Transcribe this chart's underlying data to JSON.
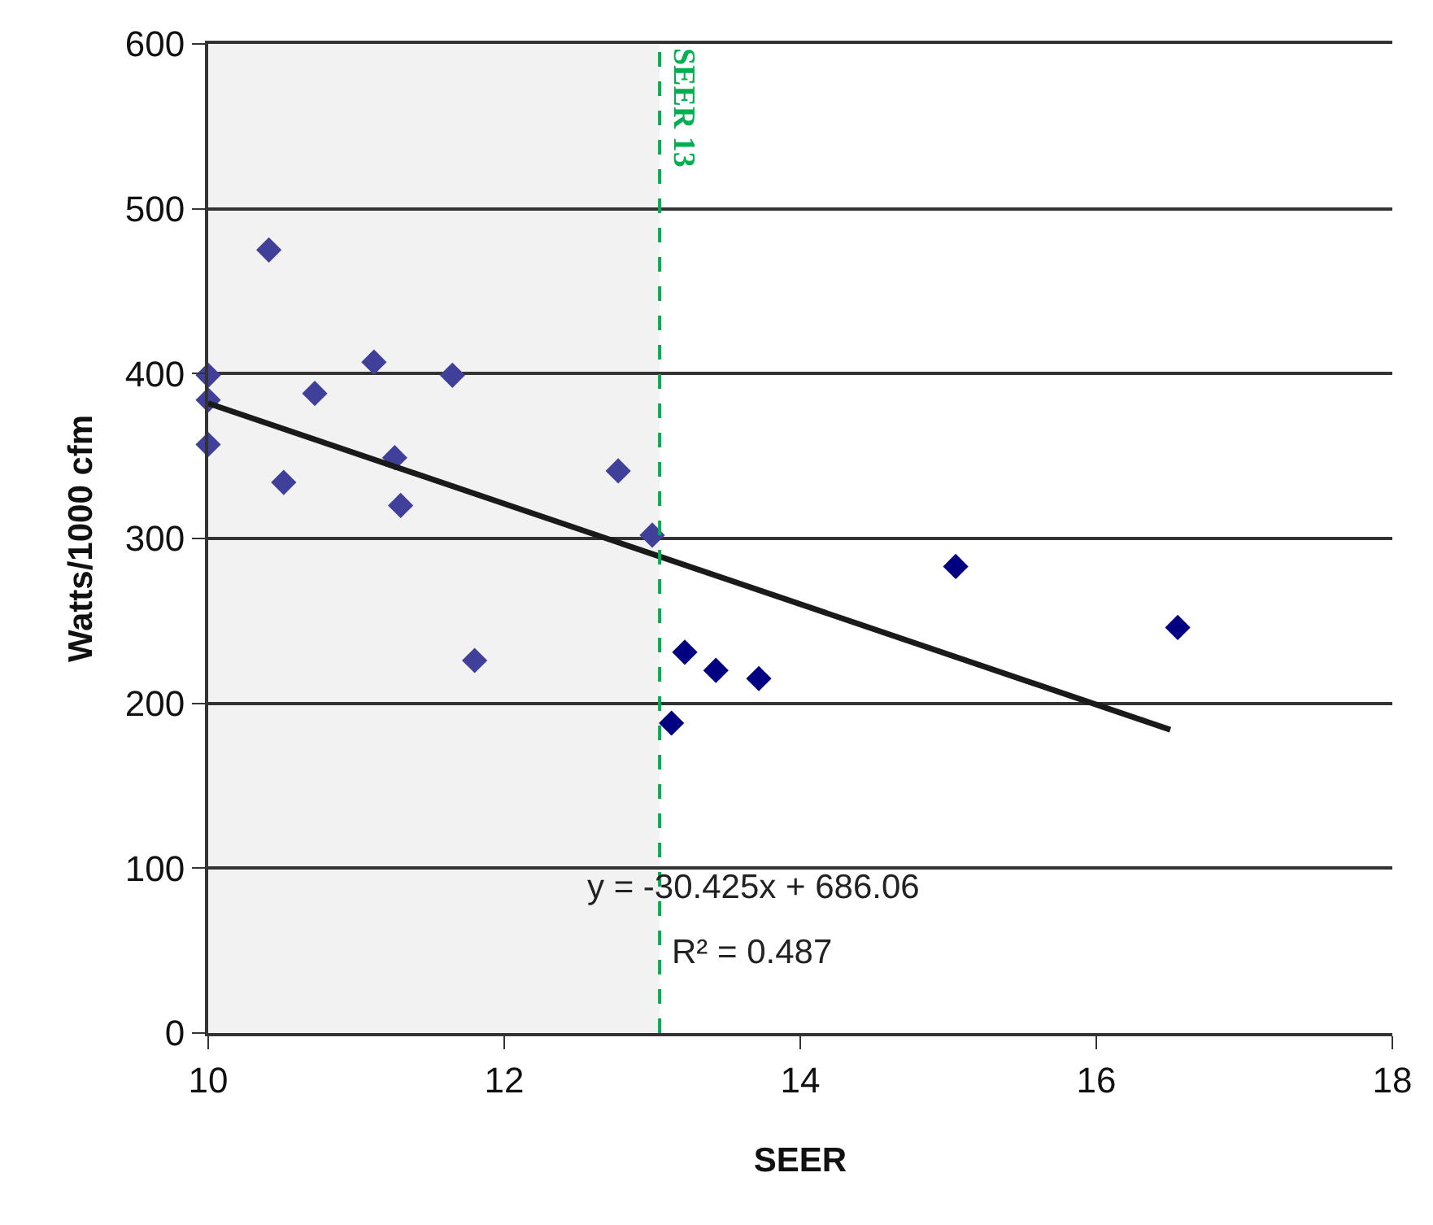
{
  "chart_data": {
    "type": "scatter",
    "xlabel": "SEER",
    "ylabel": "Watts/1000 cfm",
    "xlim": [
      10,
      18
    ],
    "xticks": [
      10,
      12,
      14,
      16,
      18
    ],
    "ylim": [
      0,
      600
    ],
    "yticks": [
      0,
      100,
      200,
      300,
      400,
      500,
      600
    ],
    "grid": "y",
    "marker": "diamond",
    "series": [
      {
        "color": "#40409a",
        "x": [
          10.0,
          10.0,
          10.0,
          10.41,
          10.51,
          10.72,
          11.12,
          11.26,
          11.3,
          11.65,
          11.8,
          12.77,
          13.0
        ],
        "values": [
          399,
          384,
          357,
          475,
          334,
          388,
          407,
          349,
          320,
          399,
          226,
          341,
          302
        ]
      },
      {
        "color": "#000080",
        "x": [
          13.13,
          13.22,
          13.43,
          13.72,
          15.05,
          16.55
        ],
        "values": [
          188,
          231,
          220,
          215,
          283,
          246
        ]
      },
      {
        "type": "line",
        "color": "#1a1a1a",
        "marker": "none",
        "line_style": "solid",
        "x": [
          10,
          16.5
        ],
        "values": [
          382,
          184
        ]
      }
    ],
    "ref_lines": [
      {
        "axis": "x",
        "value": 13.05,
        "label": "SEER 13",
        "color": "#00b050",
        "line_style": "dashed"
      }
    ],
    "bands": [
      {
        "axis": "x",
        "from": 10,
        "to": 13.05,
        "color": "#f2f2f2"
      }
    ],
    "annotations": [
      "y = -30.425x + 686.06",
      "R² = 0.487"
    ]
  }
}
